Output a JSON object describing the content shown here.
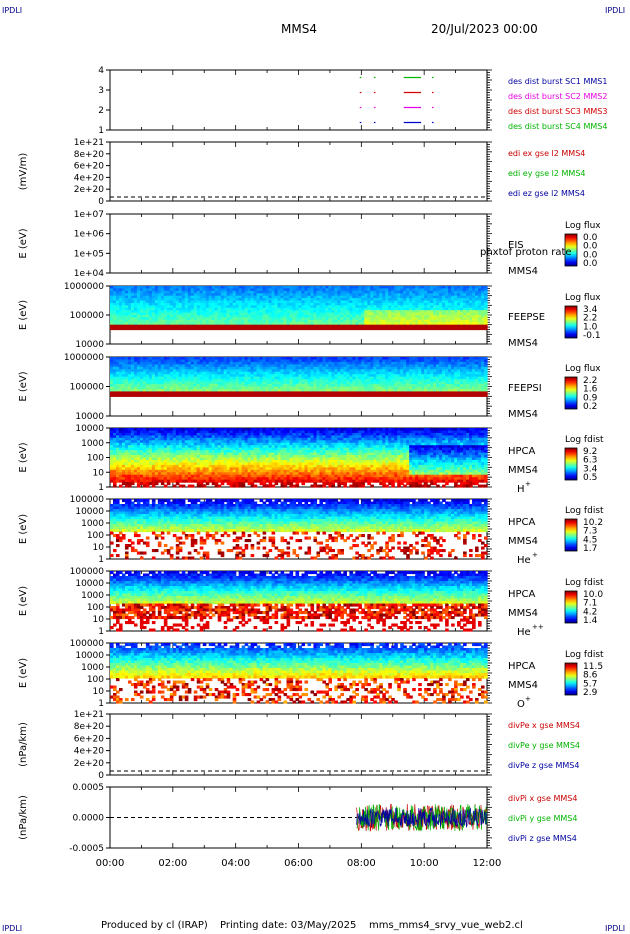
{
  "header": {
    "corner_left": "IPDLI",
    "corner_right": "IPDLI",
    "spacecraft": "MMS4",
    "datetime": "20/Jul/2023 00:00"
  },
  "footer": {
    "produced_by": "Produced by cl (IRAP)",
    "printing_date": "Printing date: 03/May/2025",
    "filename": "mms_mms4_srvy_vue_web2.cl"
  },
  "colors": {
    "red": "#d40000",
    "green": "#00c800",
    "blue": "#0000c8",
    "magenta": "#e600e6",
    "text_blue": "#0000a0",
    "text_red": "#c80000",
    "text_green": "#00b400"
  },
  "chart_data": [
    {
      "id": "burst",
      "type": "line",
      "ylabel": "",
      "ylim": [
        0.5,
        4.5
      ],
      "yticks": [
        "4",
        "3",
        "2",
        "1"
      ],
      "legend": [
        {
          "label": "des dist burst SC1 MMS1",
          "color": "#0000a0"
        },
        {
          "label": "des dist burst SC2 MMS2",
          "color": "#e600e6"
        },
        {
          "label": "des dist burst SC3 MMS3",
          "color": "#d40000"
        },
        {
          "label": "des dist burst SC4 MMS4",
          "color": "#00b400"
        }
      ],
      "segments": [
        {
          "level": 4,
          "color": "#00b400",
          "intervals": [
            [
              7.95,
              8.0
            ],
            [
              8.4,
              8.45
            ],
            [
              9.35,
              9.9
            ],
            [
              10.25,
              10.3
            ]
          ]
        },
        {
          "level": 3,
          "color": "#d40000",
          "intervals": [
            [
              7.95,
              8.0
            ],
            [
              8.4,
              8.45
            ],
            [
              9.35,
              9.9
            ],
            [
              10.25,
              10.3
            ]
          ]
        },
        {
          "level": 2,
          "color": "#e600e6",
          "intervals": [
            [
              7.95,
              8.0
            ],
            [
              8.4,
              8.45
            ],
            [
              9.35,
              9.9
            ],
            [
              10.25,
              10.3
            ]
          ]
        },
        {
          "level": 1,
          "color": "#0000c8",
          "intervals": [
            [
              7.95,
              8.0
            ],
            [
              8.4,
              8.45
            ],
            [
              9.35,
              9.9
            ],
            [
              10.25,
              10.3
            ]
          ]
        }
      ]
    },
    {
      "id": "edi",
      "type": "line",
      "ylabel": "(mV/m)",
      "yticks": [
        "1e+21",
        "8e+20",
        "6e+20",
        "4e+20",
        "2e+20",
        "0"
      ],
      "legend": [
        {
          "label": "edi ex gse l2 MMS4",
          "color": "#c80000"
        },
        {
          "label": "edi ey gse l2 MMS4",
          "color": "#00b400"
        },
        {
          "label": "edi ez gse l2 MMS4",
          "color": "#0000a0"
        }
      ]
    },
    {
      "id": "eis",
      "type": "heatmap",
      "ylabel": "E (eV)",
      "yticks": [
        "1e+07",
        "1e+06",
        "1e+05",
        "1e+04"
      ],
      "instrument": "EIS",
      "instrument2": "MMS4",
      "overlay": "phxtof proton rate",
      "colorbar_title": "Log flux",
      "colorbar_ticks": [
        "0.0",
        "0.0",
        "0.0",
        "0.0"
      ]
    },
    {
      "id": "feepse",
      "type": "heatmap",
      "ylabel": "E (eV)",
      "yticks": [
        "1000000",
        "100000",
        "10000"
      ],
      "instrument": "FEEPSE",
      "instrument2": "MMS4",
      "colorbar_title": "Log flux",
      "colorbar_ticks": [
        "3.4",
        "2.2",
        "1.0",
        "-0.1"
      ]
    },
    {
      "id": "feepsi",
      "type": "heatmap",
      "ylabel": "E (eV)",
      "yticks": [
        "1000000",
        "100000",
        "10000"
      ],
      "instrument": "FEEPSI",
      "instrument2": "MMS4",
      "colorbar_title": "Log flux",
      "colorbar_ticks": [
        "2.2",
        "1.6",
        "0.9",
        "0.2"
      ]
    },
    {
      "id": "hpca_h",
      "type": "heatmap",
      "ylabel": "E (eV)",
      "yticks": [
        "10000",
        "1000",
        "100",
        "10",
        "1"
      ],
      "instrument": "HPCA",
      "instrument2": "MMS4",
      "species": "H",
      "charge": "+",
      "colorbar_title": "Log fdist",
      "colorbar_ticks": [
        "9.2",
        "6.3",
        "3.4",
        "0.5"
      ]
    },
    {
      "id": "hpca_he",
      "type": "heatmap",
      "ylabel": "E (eV)",
      "yticks": [
        "100000",
        "10000",
        "1000",
        "100",
        "10",
        "1"
      ],
      "instrument": "HPCA",
      "instrument2": "MMS4",
      "species": "He",
      "charge": "+",
      "colorbar_title": "Log fdist",
      "colorbar_ticks": [
        "10.2",
        "7.3",
        "4.5",
        "1.7"
      ]
    },
    {
      "id": "hpca_hepp",
      "type": "heatmap",
      "ylabel": "E (eV)",
      "yticks": [
        "100000",
        "10000",
        "1000",
        "100",
        "10",
        "1"
      ],
      "instrument": "HPCA",
      "instrument2": "MMS4",
      "species": "He",
      "charge": "++",
      "colorbar_title": "Log fdist",
      "colorbar_ticks": [
        "10.0",
        "7.1",
        "4.2",
        "1.4"
      ]
    },
    {
      "id": "hpca_o",
      "type": "heatmap",
      "ylabel": "E (eV)",
      "yticks": [
        "100000",
        "10000",
        "1000",
        "100",
        "10",
        "1"
      ],
      "instrument": "HPCA",
      "instrument2": "MMS4",
      "species": "O",
      "charge": "+",
      "colorbar_title": "Log fdist",
      "colorbar_ticks": [
        "11.5",
        "8.6",
        "5.7",
        "2.9"
      ]
    },
    {
      "id": "divpe",
      "type": "line",
      "ylabel": "(nPa/km)",
      "yticks": [
        "1e+21",
        "8e+20",
        "6e+20",
        "4e+20",
        "2e+20",
        "0"
      ],
      "legend": [
        {
          "label": "divPe x gse MMS4",
          "color": "#c80000"
        },
        {
          "label": "divPe y gse MMS4",
          "color": "#00b400"
        },
        {
          "label": "divPe z gse MMS4",
          "color": "#0000a0"
        }
      ]
    },
    {
      "id": "divpi",
      "type": "line",
      "ylabel": "(nPa/km)",
      "ylim": [
        -0.0009,
        0.0009
      ],
      "yticks": [
        "0.0005",
        "0.0000",
        "-0.0005"
      ],
      "yticks_values": [
        0.0005,
        0.0,
        -0.0005
      ],
      "data_start_hour": 7.85,
      "noise_amplitude": 0.0004,
      "legend": [
        {
          "label": "divPi x gse MMS4",
          "color": "#c80000"
        },
        {
          "label": "divPi y gse MMS4",
          "color": "#00b400"
        },
        {
          "label": "divPi z gse MMS4",
          "color": "#0000a0"
        }
      ]
    }
  ],
  "xaxis": {
    "range_hours": [
      0,
      12
    ],
    "tick_labels": [
      "00:00",
      "02:00",
      "04:00",
      "06:00",
      "08:00",
      "10:00",
      "12:00"
    ]
  }
}
